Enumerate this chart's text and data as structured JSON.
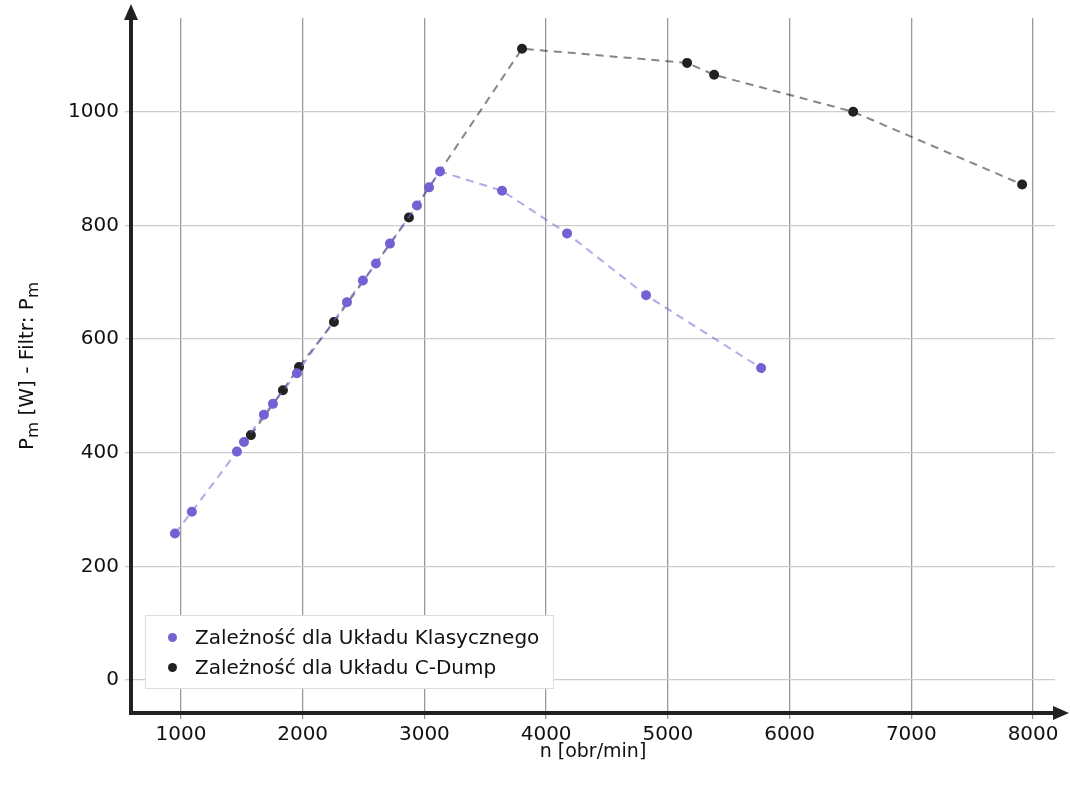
{
  "chart_data": {
    "type": "line",
    "xlabel": "n [obr/min]",
    "ylabel": "P$_{m}$ [W] - Filtr: P$_{m}$",
    "xlim": [
      590,
      8180
    ],
    "ylim": [
      -58,
      1165
    ],
    "xticks": [
      1000,
      2000,
      3000,
      4000,
      5000,
      6000,
      7000,
      8000
    ],
    "yticks": [
      0,
      200,
      400,
      600,
      800,
      1000
    ],
    "grid": true,
    "legend": "bottom left",
    "marker": "circle",
    "line_style": "dashed",
    "series": [
      {
        "name": "Zależność dla Układu Klasycznego",
        "color": "#7262d4",
        "x": [
          951,
          1090,
          1460,
          1518,
          1682,
          1756,
          1953,
          2364,
          2495,
          2602,
          2717,
          2939,
          3038,
          3128,
          3638,
          4172,
          4821,
          5766
        ],
        "values": [
          258,
          296,
          402,
          419,
          467,
          486,
          540,
          665,
          703,
          733,
          768,
          835,
          867,
          895,
          861,
          786,
          677,
          549
        ]
      },
      {
        "name": "Zależność dla Układu C-Dump",
        "color": "#222222",
        "x": [
          1575,
          1838,
          1970,
          2257,
          2873,
          3802,
          5158,
          5380,
          6522,
          7910
        ],
        "values": [
          431,
          510,
          551,
          630,
          814,
          1111,
          1086,
          1065,
          1000,
          872
        ]
      }
    ]
  }
}
